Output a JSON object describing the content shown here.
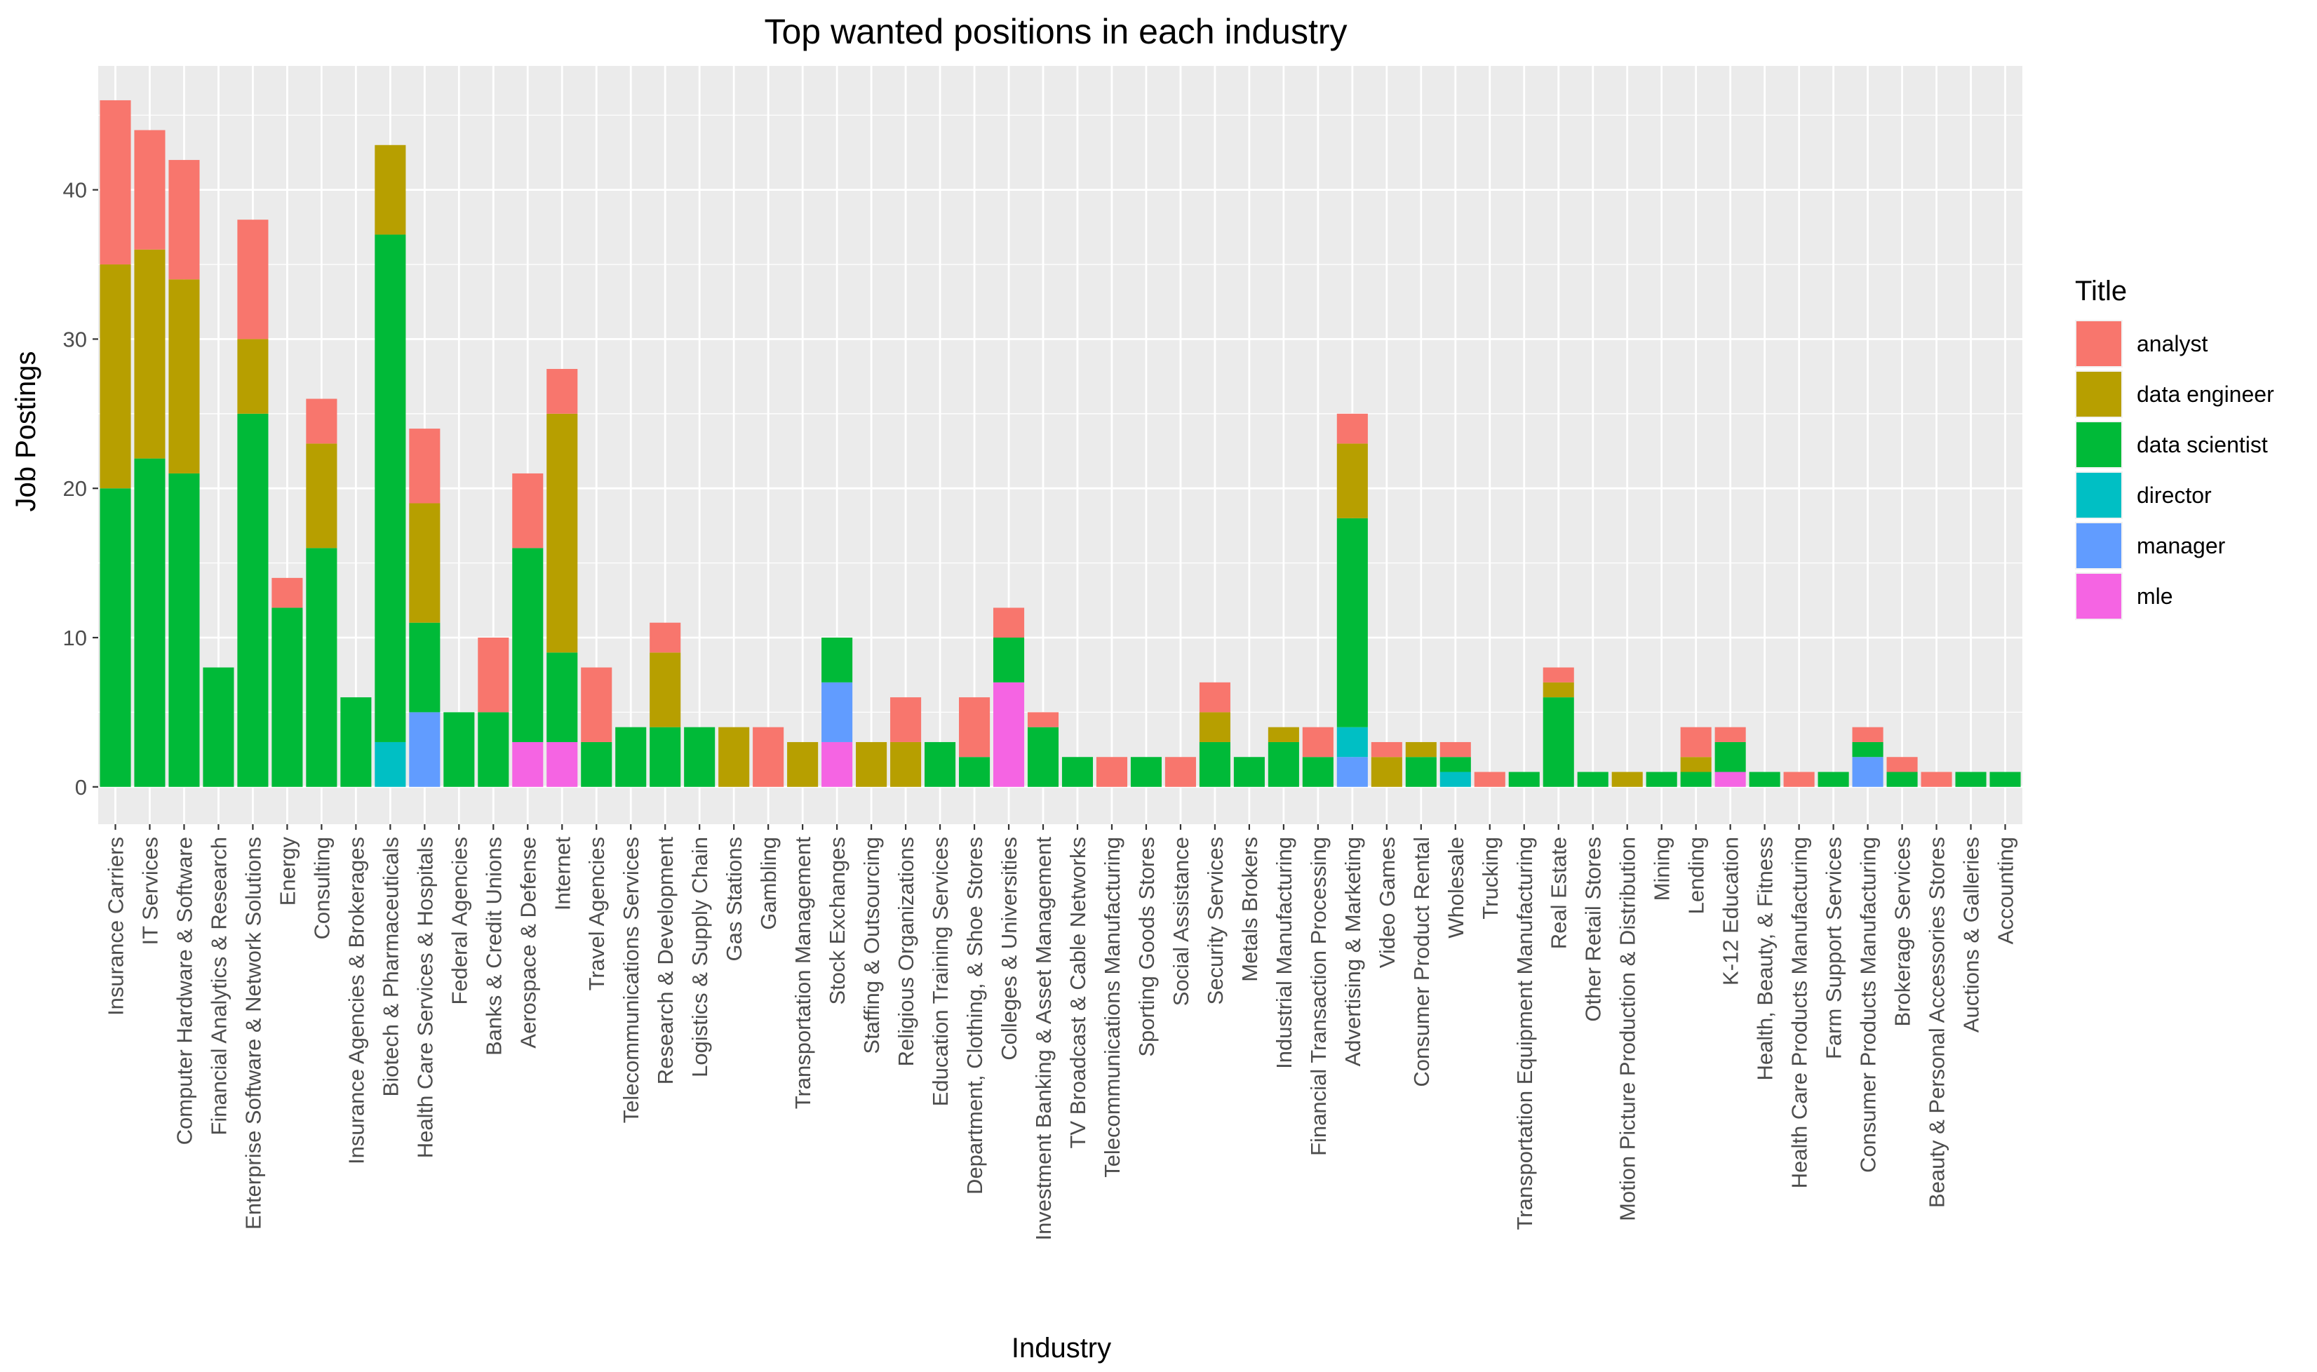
{
  "chart_data": {
    "type": "bar",
    "stacked": true,
    "title": "Top wanted positions in each industry",
    "xlabel": "Industry",
    "ylabel": "Job Postings",
    "ylim": [
      -2.5,
      48.3
    ],
    "yticks": [
      0,
      10,
      20,
      30,
      40
    ],
    "grid": true,
    "legend": {
      "title": "Title",
      "position": "right"
    },
    "categories": [
      "Insurance Carriers",
      "IT Services",
      "Computer Hardware & Software",
      "Financial Analytics & Research",
      "Enterprise Software & Network Solutions",
      "Energy",
      "Consulting",
      "Insurance Agencies & Brokerages",
      "Biotech & Pharmaceuticals",
      "Health Care Services & Hospitals",
      "Federal Agencies",
      "Banks & Credit Unions",
      "Aerospace & Defense",
      "Internet",
      "Travel Agencies",
      "Telecommunications Services",
      "Research & Development",
      "Logistics & Supply Chain",
      "Gas Stations",
      "Gambling",
      "Transportation Management",
      "Stock Exchanges",
      "Staffing & Outsourcing",
      "Religious Organizations",
      "Education Training Services",
      "Department, Clothing, & Shoe Stores",
      "Colleges & Universities",
      "Investment Banking & Asset Management",
      "TV Broadcast & Cable Networks",
      "Telecommunications Manufacturing",
      "Sporting Goods Stores",
      "Social Assistance",
      "Security Services",
      "Metals Brokers",
      "Industrial Manufacturing",
      "Financial Transaction Processing",
      "Advertising & Marketing",
      "Video Games",
      "Consumer Product Rental",
      "Wholesale",
      "Trucking",
      "Transportation Equipment Manufacturing",
      "Real Estate",
      "Other Retail Stores",
      "Motion Picture Production & Distribution",
      "Mining",
      "Lending",
      "K-12 Education",
      "Health, Beauty, & Fitness",
      "Health Care Products Manufacturing",
      "Farm Support Services",
      "Consumer Products Manufacturing",
      "Brokerage Services",
      "Beauty & Personal Accessories Stores",
      "Auctions & Galleries",
      "Accounting"
    ],
    "series": [
      {
        "name": "mle",
        "color": "#F564E3",
        "values": [
          0,
          0,
          0,
          0,
          0,
          0,
          0,
          0,
          0,
          0,
          0,
          0,
          3,
          3,
          0,
          0,
          0,
          0,
          0,
          0,
          0,
          3,
          0,
          0,
          0,
          0,
          7,
          0,
          0,
          0,
          0,
          0,
          0,
          0,
          0,
          0,
          0,
          0,
          0,
          0,
          0,
          0,
          0,
          0,
          0,
          0,
          0,
          1,
          0,
          0,
          0,
          0,
          0,
          0,
          0,
          0
        ]
      },
      {
        "name": "manager",
        "color": "#619CFF",
        "values": [
          0,
          0,
          0,
          0,
          0,
          0,
          0,
          0,
          0,
          5,
          0,
          0,
          0,
          0,
          0,
          0,
          0,
          0,
          0,
          0,
          0,
          4,
          0,
          0,
          0,
          0,
          0,
          0,
          0,
          0,
          0,
          0,
          0,
          0,
          0,
          0,
          2,
          0,
          0,
          0,
          0,
          0,
          0,
          0,
          0,
          0,
          0,
          0,
          0,
          0,
          0,
          2,
          0,
          0,
          0,
          0
        ]
      },
      {
        "name": "director",
        "color": "#00BFC4",
        "values": [
          0,
          0,
          0,
          0,
          0,
          0,
          0,
          0,
          3,
          0,
          0,
          0,
          0,
          0,
          0,
          0,
          0,
          0,
          0,
          0,
          0,
          0,
          0,
          0,
          0,
          0,
          0,
          0,
          0,
          0,
          0,
          0,
          0,
          0,
          0,
          0,
          2,
          0,
          0,
          1,
          0,
          0,
          0,
          0,
          0,
          0,
          0,
          0,
          0,
          0,
          0,
          0,
          0,
          0,
          0,
          0
        ]
      },
      {
        "name": "data scientist",
        "color": "#00BA38",
        "values": [
          20,
          22,
          21,
          8,
          25,
          12,
          16,
          6,
          34,
          6,
          5,
          5,
          13,
          6,
          3,
          4,
          4,
          4,
          0,
          0,
          0,
          3,
          0,
          0,
          3,
          2,
          3,
          4,
          2,
          0,
          2,
          0,
          3,
          2,
          3,
          2,
          14,
          0,
          2,
          1,
          0,
          1,
          6,
          1,
          0,
          1,
          1,
          2,
          1,
          0,
          1,
          1,
          1,
          0,
          1,
          1
        ]
      },
      {
        "name": "data engineer",
        "color": "#B79F00",
        "values": [
          15,
          14,
          13,
          0,
          5,
          0,
          7,
          0,
          6,
          8,
          0,
          0,
          0,
          16,
          0,
          0,
          5,
          0,
          4,
          0,
          3,
          0,
          3,
          3,
          0,
          0,
          0,
          0,
          0,
          0,
          0,
          0,
          2,
          0,
          1,
          0,
          5,
          2,
          1,
          0,
          0,
          0,
          1,
          0,
          1,
          0,
          1,
          0,
          0,
          0,
          0,
          0,
          0,
          0,
          0,
          0
        ]
      },
      {
        "name": "analyst",
        "color": "#F8766D",
        "values": [
          11,
          8,
          8,
          0,
          8,
          2,
          3,
          0,
          0,
          5,
          0,
          5,
          5,
          3,
          5,
          0,
          2,
          0,
          0,
          4,
          0,
          0,
          0,
          3,
          0,
          4,
          2,
          1,
          0,
          2,
          0,
          2,
          2,
          0,
          0,
          2,
          2,
          1,
          0,
          1,
          1,
          0,
          1,
          0,
          0,
          0,
          2,
          1,
          0,
          1,
          0,
          1,
          1,
          1,
          0,
          0
        ]
      }
    ],
    "legend_order": [
      "analyst",
      "data engineer",
      "data scientist",
      "director",
      "manager",
      "mle"
    ]
  }
}
